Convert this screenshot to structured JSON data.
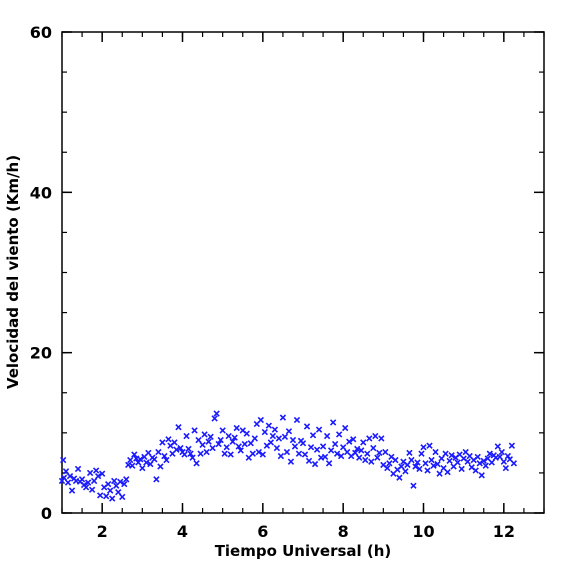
{
  "chart_data": {
    "type": "scatter",
    "title": "",
    "xlabel": "Tiempo Universal (h)",
    "ylabel": "Velocidad del viento (Km/h)",
    "xlim": [
      1,
      13
    ],
    "ylim": [
      0,
      60
    ],
    "x_ticks": [
      2,
      4,
      6,
      8,
      10,
      12
    ],
    "y_ticks": [
      0,
      20,
      40,
      60
    ],
    "x_minor_step": 0.5,
    "y_minor_step": 5,
    "marker": "x",
    "color": "#1a1aff",
    "grid": false,
    "legend": "none",
    "series": [
      {
        "points": [
          [
            1.0,
            4.0
          ],
          [
            1.03,
            6.6
          ],
          [
            1.05,
            4.4
          ],
          [
            1.1,
            5.2
          ],
          [
            1.15,
            3.8
          ],
          [
            1.2,
            4.6
          ],
          [
            1.25,
            2.8
          ],
          [
            1.3,
            4.3
          ],
          [
            1.35,
            4.0
          ],
          [
            1.4,
            5.5
          ],
          [
            1.45,
            3.9
          ],
          [
            1.5,
            4.2
          ],
          [
            1.55,
            3.5
          ],
          [
            1.6,
            3.2
          ],
          [
            1.65,
            3.8
          ],
          [
            1.7,
            5.0
          ],
          [
            1.75,
            2.9
          ],
          [
            1.8,
            4.0
          ],
          [
            1.85,
            5.3
          ],
          [
            1.9,
            4.6
          ],
          [
            1.95,
            2.2
          ],
          [
            2.0,
            4.9
          ],
          [
            2.05,
            3.2
          ],
          [
            2.1,
            2.1
          ],
          [
            2.15,
            3.6
          ],
          [
            2.2,
            2.8
          ],
          [
            2.25,
            1.8
          ],
          [
            2.3,
            4.0
          ],
          [
            2.35,
            3.4
          ],
          [
            2.4,
            2.6
          ],
          [
            2.45,
            3.9
          ],
          [
            2.5,
            2.0
          ],
          [
            2.55,
            3.6
          ],
          [
            2.6,
            4.2
          ],
          [
            2.65,
            6.0
          ],
          [
            2.7,
            6.6
          ],
          [
            2.75,
            5.9
          ],
          [
            2.8,
            7.3
          ],
          [
            2.85,
            6.8
          ],
          [
            2.9,
            6.3
          ],
          [
            2.95,
            6.7
          ],
          [
            3.0,
            5.6
          ],
          [
            3.05,
            7.0
          ],
          [
            3.1,
            6.3
          ],
          [
            3.15,
            7.5
          ],
          [
            3.2,
            6.1
          ],
          [
            3.25,
            6.9
          ],
          [
            3.3,
            6.7
          ],
          [
            3.35,
            4.2
          ],
          [
            3.4,
            7.6
          ],
          [
            3.45,
            5.8
          ],
          [
            3.5,
            8.8
          ],
          [
            3.55,
            7.1
          ],
          [
            3.6,
            6.6
          ],
          [
            3.65,
            9.2
          ],
          [
            3.7,
            8.4
          ],
          [
            3.75,
            7.4
          ],
          [
            3.8,
            8.8
          ],
          [
            3.85,
            7.9
          ],
          [
            3.9,
            10.7
          ],
          [
            3.95,
            8.1
          ],
          [
            4.0,
            7.6
          ],
          [
            4.05,
            7.3
          ],
          [
            4.1,
            9.6
          ],
          [
            4.15,
            8.0
          ],
          [
            4.2,
            7.4
          ],
          [
            4.25,
            6.9
          ],
          [
            4.3,
            10.3
          ],
          [
            4.35,
            6.2
          ],
          [
            4.4,
            9.1
          ],
          [
            4.45,
            7.4
          ],
          [
            4.5,
            8.5
          ],
          [
            4.55,
            9.8
          ],
          [
            4.6,
            7.6
          ],
          [
            4.65,
            8.9
          ],
          [
            4.7,
            9.5
          ],
          [
            4.75,
            8.1
          ],
          [
            4.8,
            11.8
          ],
          [
            4.85,
            12.4
          ],
          [
            4.9,
            8.6
          ],
          [
            4.95,
            9.1
          ],
          [
            5.0,
            10.3
          ],
          [
            5.05,
            7.4
          ],
          [
            5.1,
            8.2
          ],
          [
            5.15,
            9.6
          ],
          [
            5.2,
            7.3
          ],
          [
            5.25,
            8.9
          ],
          [
            5.3,
            9.4
          ],
          [
            5.35,
            10.6
          ],
          [
            5.4,
            8.3
          ],
          [
            5.45,
            7.8
          ],
          [
            5.5,
            10.3
          ],
          [
            5.55,
            8.6
          ],
          [
            5.6,
            9.9
          ],
          [
            5.65,
            6.9
          ],
          [
            5.7,
            8.7
          ],
          [
            5.75,
            7.4
          ],
          [
            5.8,
            9.3
          ],
          [
            5.85,
            11.1
          ],
          [
            5.9,
            7.6
          ],
          [
            5.95,
            11.6
          ],
          [
            6.0,
            7.3
          ],
          [
            6.05,
            10.1
          ],
          [
            6.1,
            8.4
          ],
          [
            6.15,
            10.9
          ],
          [
            6.2,
            8.8
          ],
          [
            6.25,
            9.6
          ],
          [
            6.3,
            10.4
          ],
          [
            6.35,
            8.1
          ],
          [
            6.4,
            9.3
          ],
          [
            6.45,
            7.1
          ],
          [
            6.5,
            11.9
          ],
          [
            6.55,
            9.5
          ],
          [
            6.6,
            7.6
          ],
          [
            6.65,
            10.2
          ],
          [
            6.7,
            6.4
          ],
          [
            6.75,
            9.1
          ],
          [
            6.8,
            8.3
          ],
          [
            6.85,
            11.6
          ],
          [
            6.9,
            7.4
          ],
          [
            6.95,
            9.0
          ],
          [
            7.0,
            8.7
          ],
          [
            7.05,
            7.3
          ],
          [
            7.1,
            10.8
          ],
          [
            7.15,
            6.5
          ],
          [
            7.2,
            8.2
          ],
          [
            7.25,
            9.7
          ],
          [
            7.3,
            6.1
          ],
          [
            7.35,
            7.9
          ],
          [
            7.4,
            10.4
          ],
          [
            7.45,
            6.9
          ],
          [
            7.5,
            8.3
          ],
          [
            7.55,
            7.0
          ],
          [
            7.6,
            9.6
          ],
          [
            7.65,
            6.2
          ],
          [
            7.7,
            7.8
          ],
          [
            7.75,
            11.3
          ],
          [
            7.8,
            8.6
          ],
          [
            7.85,
            7.4
          ],
          [
            7.9,
            9.8
          ],
          [
            7.95,
            7.1
          ],
          [
            8.0,
            8.2
          ],
          [
            8.05,
            10.6
          ],
          [
            8.1,
            7.6
          ],
          [
            8.15,
            8.9
          ],
          [
            8.2,
            7.1
          ],
          [
            8.25,
            9.2
          ],
          [
            8.3,
            7.5
          ],
          [
            8.35,
            8.0
          ],
          [
            8.4,
            6.9
          ],
          [
            8.45,
            7.8
          ],
          [
            8.5,
            8.8
          ],
          [
            8.55,
            6.6
          ],
          [
            8.6,
            7.4
          ],
          [
            8.65,
            9.3
          ],
          [
            8.7,
            6.4
          ],
          [
            8.75,
            8.1
          ],
          [
            8.8,
            9.6
          ],
          [
            8.85,
            6.9
          ],
          [
            8.9,
            7.5
          ],
          [
            8.95,
            9.3
          ],
          [
            9.0,
            6.0
          ],
          [
            9.05,
            7.6
          ],
          [
            9.1,
            5.6
          ],
          [
            9.15,
            6.2
          ],
          [
            9.2,
            7.0
          ],
          [
            9.25,
            4.9
          ],
          [
            9.3,
            6.6
          ],
          [
            9.35,
            5.4
          ],
          [
            9.4,
            4.4
          ],
          [
            9.45,
            5.8
          ],
          [
            9.5,
            6.4
          ],
          [
            9.55,
            5.2
          ],
          [
            9.6,
            6.0
          ],
          [
            9.65,
            7.5
          ],
          [
            9.7,
            6.6
          ],
          [
            9.75,
            3.4
          ],
          [
            9.8,
            5.8
          ],
          [
            9.85,
            6.3
          ],
          [
            9.9,
            5.5
          ],
          [
            9.95,
            7.4
          ],
          [
            10.0,
            8.2
          ],
          [
            10.05,
            6.2
          ],
          [
            10.1,
            5.3
          ],
          [
            10.15,
            8.4
          ],
          [
            10.2,
            6.6
          ],
          [
            10.25,
            5.9
          ],
          [
            10.3,
            7.6
          ],
          [
            10.35,
            6.1
          ],
          [
            10.4,
            4.9
          ],
          [
            10.45,
            6.8
          ],
          [
            10.5,
            5.6
          ],
          [
            10.55,
            7.4
          ],
          [
            10.6,
            5.1
          ],
          [
            10.65,
            6.5
          ],
          [
            10.7,
            7.2
          ],
          [
            10.75,
            5.8
          ],
          [
            10.8,
            6.9
          ],
          [
            10.85,
            6.3
          ],
          [
            10.9,
            7.3
          ],
          [
            10.95,
            5.5
          ],
          [
            11.0,
            6.8
          ],
          [
            11.05,
            7.6
          ],
          [
            11.1,
            6.4
          ],
          [
            11.15,
            7.1
          ],
          [
            11.2,
            5.7
          ],
          [
            11.25,
            6.6
          ],
          [
            11.3,
            5.3
          ],
          [
            11.35,
            7.0
          ],
          [
            11.4,
            6.2
          ],
          [
            11.45,
            4.7
          ],
          [
            11.5,
            6.5
          ],
          [
            11.55,
            5.9
          ],
          [
            11.6,
            6.8
          ],
          [
            11.65,
            7.4
          ],
          [
            11.7,
            6.3
          ],
          [
            11.75,
            7.2
          ],
          [
            11.8,
            6.9
          ],
          [
            11.85,
            8.3
          ],
          [
            11.9,
            7.0
          ],
          [
            11.95,
            7.6
          ],
          [
            12.0,
            6.4
          ],
          [
            12.05,
            5.6
          ],
          [
            12.1,
            7.1
          ],
          [
            12.15,
            6.7
          ],
          [
            12.2,
            8.4
          ],
          [
            12.25,
            6.2
          ]
        ]
      }
    ]
  }
}
